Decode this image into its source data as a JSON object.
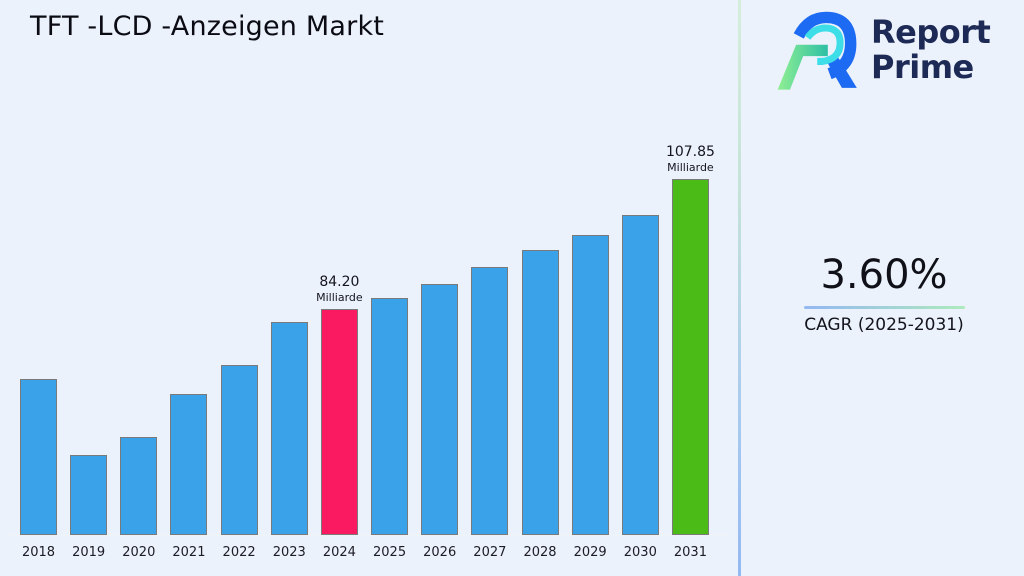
{
  "page": {
    "background": "#ecf2fb",
    "title": "TFT -LCD -Anzeigen Markt"
  },
  "divider": {
    "top_color": "#d5eedb",
    "bottom_color": "#93b9f3"
  },
  "logo": {
    "line1": "Report",
    "line2": "Prime",
    "text_color": "#1d2a55",
    "mark_colors": {
      "blue": "#1e6bf3",
      "cyan": "#3ddee8",
      "green_light": "#8fef92",
      "green_teal": "#2ebfa5"
    }
  },
  "kpi": {
    "value": "3.60%",
    "caption": "CAGR (2025-2031)",
    "underline_from": "#93b8f2",
    "underline_to": "#aeeabd"
  },
  "chart_data": {
    "type": "bar",
    "title": "TFT -LCD -Anzeigen Markt",
    "unit": "Milliarde",
    "categories": [
      "2018",
      "2019",
      "2020",
      "2021",
      "2022",
      "2023",
      "2024",
      "2025",
      "2026",
      "2027",
      "2028",
      "2029",
      "2030",
      "2031"
    ],
    "values": [
      71.5,
      57.7,
      60.9,
      68.7,
      74.0,
      81.8,
      84.2,
      86.2,
      88.8,
      91.8,
      94.9,
      97.6,
      101.3,
      107.85
    ],
    "ylim": [
      43.1,
      112
    ],
    "axis_visible": false,
    "grid": false,
    "legend": "none",
    "colors": {
      "default": "#39a2e9",
      "border": "#7a7a7a",
      "highlights": {
        "2024": "#fa1a62",
        "2031": "#4bbb17"
      }
    },
    "annotations": [
      {
        "category": "2024",
        "value_label": "84.20",
        "unit_label": "Milliarde"
      },
      {
        "category": "2031",
        "value_label": "107.85",
        "unit_label": "Milliarde"
      }
    ]
  }
}
